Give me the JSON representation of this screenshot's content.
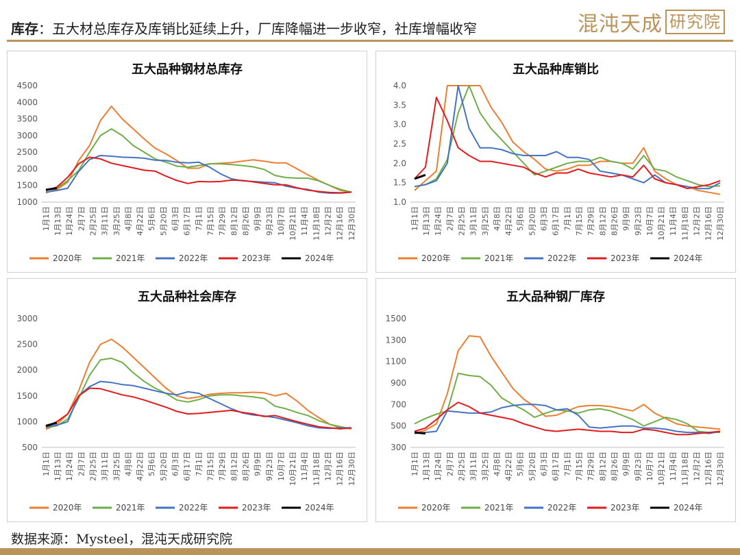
{
  "header": {
    "bold_label": "库存",
    "title": "：五大材总库存及库销比延续上升，厂库降幅进一步收窄，社库增幅收窄",
    "brand_text": "混沌天成",
    "brand_boxed": "研究院"
  },
  "source": "数据来源：Mysteel，混沌天成研究院",
  "colors": {
    "2020年": "#ed7d31",
    "2021年": "#70ad47",
    "2022年": "#4472c4",
    "2023年": "#e31a1c",
    "2024年": "#000000"
  },
  "x_ticks": [
    "1月1日",
    "1月13日",
    "1月24日",
    "2月7日",
    "2月25日",
    "3月11日",
    "3月25日",
    "4月8日",
    "4月22日",
    "5月6日",
    "5月20日",
    "6月3日",
    "6月17日",
    "7月1日",
    "7月15日",
    "7月29日",
    "8月12日",
    "8月26日",
    "9月9日",
    "9月23日",
    "10月7日",
    "10月21日",
    "11月4日",
    "11月18日",
    "12月2日",
    "12月16日",
    "12月30日"
  ],
  "chart_data": [
    {
      "type": "line",
      "title": "五大品种钢材总库存",
      "ylim": [
        1000,
        4500
      ],
      "yticks": [
        1000,
        1500,
        2000,
        2500,
        3000,
        3500,
        4000,
        4500
      ],
      "ytick_labels": [
        "1000",
        "1500",
        "2000",
        "2500",
        "3000",
        "3500",
        "4000",
        "4500"
      ],
      "series": [
        {
          "name": "2020年",
          "values": [
            1280,
            1380,
            1600,
            2250,
            2700,
            3450,
            3880,
            3500,
            3200,
            2900,
            2620,
            2450,
            2250,
            2020,
            2020,
            2150,
            2170,
            2190,
            2230,
            2270,
            2230,
            2180,
            2180,
            2000,
            1820,
            1650,
            1500,
            1350,
            1300
          ]
        },
        {
          "name": "2021年",
          "values": [
            1350,
            1420,
            1650,
            1950,
            2500,
            3000,
            3200,
            3000,
            2700,
            2500,
            2300,
            2200,
            2080,
            2050,
            2100,
            2150,
            2150,
            2130,
            2100,
            2060,
            1980,
            1800,
            1740,
            1720,
            1720,
            1640,
            1500,
            1380,
            1300
          ]
        },
        {
          "name": "2022年",
          "values": [
            1300,
            1350,
            1420,
            1920,
            2280,
            2400,
            2380,
            2350,
            2340,
            2320,
            2260,
            2250,
            2200,
            2180,
            2200,
            2050,
            1850,
            1700,
            1640,
            1620,
            1600,
            1580,
            1480,
            1420,
            1380,
            1300,
            1270,
            1270,
            1300
          ]
        },
        {
          "name": "2023年",
          "values": [
            1350,
            1450,
            1750,
            2150,
            2350,
            2300,
            2170,
            2100,
            2030,
            1960,
            1930,
            1780,
            1650,
            1560,
            1620,
            1610,
            1620,
            1660,
            1650,
            1610,
            1560,
            1520,
            1520,
            1430,
            1360,
            1320,
            1290,
            1280,
            1300
          ]
        },
        {
          "name": "2024年",
          "values": [
            1370,
            1420
          ]
        }
      ]
    },
    {
      "type": "line",
      "title": "五大品种库销比",
      "ylim": [
        1.0,
        4.0
      ],
      "yticks": [
        1.0,
        1.5,
        2.0,
        2.5,
        3.0,
        3.5,
        4.0
      ],
      "ytick_labels": [
        "1.0",
        "1.5",
        "2.0",
        "2.5",
        "3.0",
        "3.5",
        "4.0"
      ],
      "series": [
        {
          "name": "2020年",
          "values": [
            1.3,
            1.55,
            1.8,
            4.0,
            4.0,
            4.0,
            4.0,
            3.45,
            3.05,
            2.55,
            2.3,
            2.1,
            1.85,
            1.8,
            1.85,
            1.95,
            1.95,
            2.05,
            2.05,
            2.0,
            2.0,
            2.4,
            1.8,
            1.6,
            1.45,
            1.4,
            1.3,
            1.25,
            1.2
          ]
        },
        {
          "name": "2021年",
          "values": [
            1.4,
            1.45,
            1.6,
            2.1,
            3.3,
            4.0,
            3.3,
            2.9,
            2.6,
            2.3,
            2.0,
            1.7,
            1.8,
            1.9,
            2.0,
            2.05,
            2.05,
            2.15,
            2.05,
            2.0,
            1.85,
            2.2,
            1.85,
            1.8,
            1.65,
            1.55,
            1.45,
            1.4,
            1.42
          ]
        },
        {
          "name": "2022年",
          "values": [
            1.4,
            1.45,
            1.55,
            2.0,
            4.0,
            2.9,
            2.4,
            2.4,
            2.35,
            2.25,
            2.2,
            2.2,
            2.2,
            2.3,
            2.15,
            2.15,
            2.1,
            1.8,
            1.75,
            1.7,
            1.6,
            1.5,
            1.7,
            1.5,
            1.45,
            1.4,
            1.35,
            1.35,
            1.5
          ]
        },
        {
          "name": "2023年",
          "values": [
            1.6,
            1.9,
            3.7,
            3.1,
            2.4,
            2.2,
            2.05,
            2.05,
            2.0,
            1.95,
            1.9,
            1.75,
            1.65,
            1.75,
            1.75,
            1.85,
            1.75,
            1.7,
            1.65,
            1.7,
            1.65,
            1.95,
            1.6,
            1.5,
            1.45,
            1.35,
            1.4,
            1.45,
            1.55
          ]
        },
        {
          "name": "2024年",
          "values": [
            1.6,
            1.7
          ]
        }
      ]
    },
    {
      "type": "line",
      "title": "五大品种社会库存",
      "ylim": [
        500,
        3000
      ],
      "yticks": [
        500,
        1000,
        1500,
        2000,
        2500,
        3000
      ],
      "ytick_labels": [
        "500",
        "1000",
        "1500",
        "2000",
        "2500",
        "3000"
      ],
      "series": [
        {
          "name": "2020年",
          "values": [
            850,
            950,
            1150,
            1600,
            2150,
            2500,
            2600,
            2450,
            2250,
            2050,
            1850,
            1650,
            1500,
            1450,
            1480,
            1530,
            1550,
            1560,
            1560,
            1570,
            1560,
            1500,
            1550,
            1400,
            1220,
            1080,
            950,
            880,
            860
          ]
        },
        {
          "name": "2021年",
          "values": [
            880,
            920,
            1050,
            1450,
            1900,
            2200,
            2230,
            2150,
            1950,
            1780,
            1650,
            1550,
            1420,
            1380,
            1430,
            1500,
            1520,
            1520,
            1500,
            1480,
            1450,
            1300,
            1250,
            1180,
            1120,
            1020,
            950,
            900,
            860
          ]
        },
        {
          "name": "2022年",
          "values": [
            900,
            930,
            1000,
            1500,
            1680,
            1780,
            1760,
            1720,
            1700,
            1650,
            1600,
            1550,
            1520,
            1580,
            1550,
            1450,
            1350,
            1250,
            1170,
            1130,
            1110,
            1080,
            1030,
            980,
            920,
            880,
            870,
            880,
            880
          ]
        },
        {
          "name": "2023年",
          "values": [
            900,
            1000,
            1150,
            1500,
            1650,
            1640,
            1580,
            1520,
            1480,
            1420,
            1350,
            1280,
            1200,
            1150,
            1160,
            1180,
            1200,
            1220,
            1180,
            1150,
            1100,
            1120,
            1060,
            1000,
            950,
            900,
            880,
            860,
            880
          ]
        },
        {
          "name": "2024年",
          "values": [
            920,
            980
          ]
        }
      ]
    },
    {
      "type": "line",
      "title": "五大品种钢厂库存",
      "ylim": [
        300,
        1500
      ],
      "yticks": [
        300,
        500,
        700,
        900,
        1100,
        1300,
        1500
      ],
      "ytick_labels": [
        "300",
        "500",
        "700",
        "900",
        "1100",
        "1300",
        "1500"
      ],
      "series": [
        {
          "name": "2020年",
          "values": [
            430,
            460,
            520,
            800,
            1200,
            1340,
            1330,
            1150,
            1000,
            850,
            750,
            680,
            590,
            600,
            640,
            680,
            690,
            690,
            680,
            660,
            640,
            700,
            620,
            570,
            520,
            500,
            490,
            480,
            470
          ]
        },
        {
          "name": "2021年",
          "values": [
            520,
            570,
            610,
            640,
            990,
            970,
            960,
            880,
            760,
            700,
            650,
            580,
            620,
            650,
            640,
            620,
            650,
            660,
            640,
            600,
            560,
            500,
            540,
            580,
            560,
            520,
            450,
            440,
            440
          ]
        },
        {
          "name": "2022年",
          "values": [
            430,
            440,
            450,
            640,
            630,
            620,
            620,
            630,
            670,
            690,
            700,
            700,
            690,
            650,
            660,
            600,
            490,
            480,
            490,
            500,
            500,
            480,
            480,
            470,
            450,
            440,
            440,
            430,
            450
          ]
        },
        {
          "name": "2023年",
          "values": [
            450,
            480,
            560,
            650,
            720,
            680,
            620,
            600,
            580,
            560,
            520,
            490,
            460,
            450,
            460,
            470,
            460,
            450,
            450,
            440,
            440,
            470,
            460,
            440,
            420,
            420,
            430,
            440,
            450
          ]
        },
        {
          "name": "2024年",
          "values": [
            440,
            430
          ]
        }
      ]
    }
  ]
}
